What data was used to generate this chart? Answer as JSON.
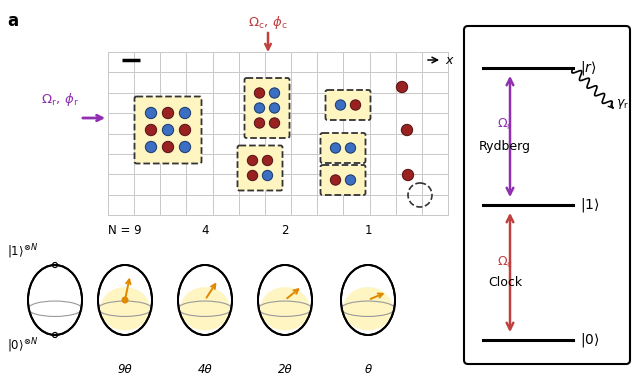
{
  "bg_color": "#ffffff",
  "grid_color": "#c8c8c8",
  "atom_blue": "#3a6fc4",
  "atom_red": "#9b2020",
  "highlight_yellow": "#fef5c0",
  "arrow_purple": "#9030b0",
  "arrow_red": "#c04040",
  "bloch_orange": "#e08800",
  "bloch_fill": "#fef5c0",
  "N_values": [
    "N = 9",
    "4",
    "2",
    "1"
  ],
  "theta_values": [
    "9θ",
    "4θ",
    "2θ",
    "θ"
  ]
}
